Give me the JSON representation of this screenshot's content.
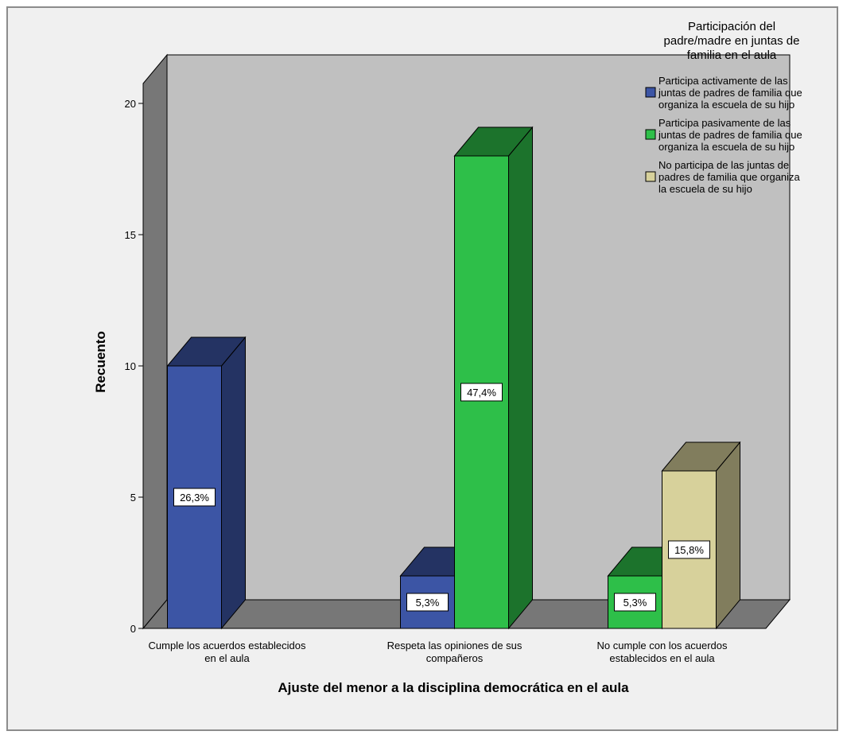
{
  "chart_data": {
    "type": "bar",
    "categories": [
      [
        "Cumple los acuerdos establecidos",
        "en el aula"
      ],
      [
        "Respeta las opiniones de sus",
        "compañeros"
      ],
      [
        "No cumple con los acuerdos",
        "establecidos en el aula"
      ]
    ],
    "series": [
      {
        "name": [
          "Participa activamente de las",
          "juntas de padres de familia que",
          "organiza la escuela de su hijo"
        ],
        "color": "#3c55a5",
        "values": [
          10,
          2,
          0
        ],
        "labels": [
          "26,3%",
          "5,3%",
          ""
        ]
      },
      {
        "name": [
          "Participa pasivamente de las",
          "juntas de padres de familia que",
          "organiza la escuela de su hijo"
        ],
        "color": "#2ebf49",
        "values": [
          0,
          18,
          2
        ],
        "labels": [
          "",
          "47,4%",
          "5,3%"
        ]
      },
      {
        "name": [
          "No participa de las juntas de",
          "padres de familia que organiza",
          "la escuela de su hijo"
        ],
        "color": "#d7d19b",
        "values": [
          0,
          0,
          6
        ],
        "labels": [
          "",
          "",
          "15,8%"
        ]
      }
    ],
    "ylim": [
      0,
      20
    ],
    "yticks": [
      0,
      5,
      10,
      15,
      20
    ],
    "xlabel": "Ajuste del menor a la disciplina democrática en el aula",
    "ylabel": "Recuento",
    "legend_title": [
      "Participación del",
      "padre/madre en juntas de",
      "familia en el aula"
    ],
    "legend_position": "top-right",
    "grid": false
  }
}
